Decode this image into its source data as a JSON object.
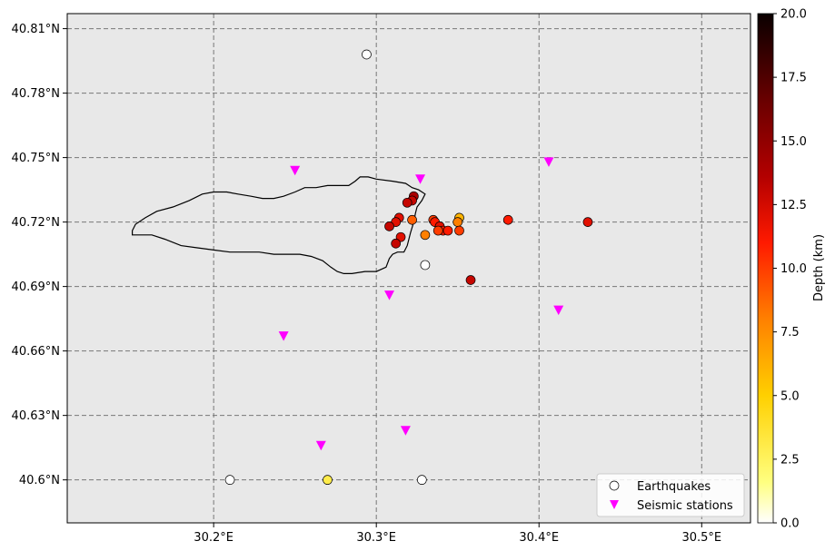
{
  "map": {
    "background_color": "#e8e8e8",
    "grid": true,
    "grid_style": "dashed",
    "lon_range": [
      30.11,
      30.53
    ],
    "lat_range": [
      40.58,
      40.817
    ],
    "lon_ticks": [
      {
        "value": 30.2,
        "label": "30.2°E"
      },
      {
        "value": 30.3,
        "label": "30.3°E"
      },
      {
        "value": 30.4,
        "label": "30.4°E"
      },
      {
        "value": 30.5,
        "label": "30.5°E"
      }
    ],
    "lat_ticks": [
      {
        "value": 40.6,
        "label": "40.6°N"
      },
      {
        "value": 40.63,
        "label": "40.63°N"
      },
      {
        "value": 40.66,
        "label": "40.66°N"
      },
      {
        "value": 40.69,
        "label": "40.69°N"
      },
      {
        "value": 40.72,
        "label": "40.72°N"
      },
      {
        "value": 40.75,
        "label": "40.75°N"
      },
      {
        "value": 40.78,
        "label": "40.78°N"
      },
      {
        "value": 40.81,
        "label": "40.81°N"
      }
    ],
    "lake_outline": [
      [
        30.15,
        40.716
      ],
      [
        30.152,
        40.719
      ],
      [
        30.158,
        40.722
      ],
      [
        30.165,
        40.725
      ],
      [
        30.175,
        40.727
      ],
      [
        30.185,
        40.73
      ],
      [
        30.193,
        40.733
      ],
      [
        30.2,
        40.734
      ],
      [
        30.208,
        40.734
      ],
      [
        30.215,
        40.733
      ],
      [
        30.223,
        40.732
      ],
      [
        30.23,
        40.731
      ],
      [
        30.237,
        40.731
      ],
      [
        30.243,
        40.732
      ],
      [
        30.25,
        40.734
      ],
      [
        30.256,
        40.736
      ],
      [
        30.263,
        40.736
      ],
      [
        30.27,
        40.737
      ],
      [
        30.277,
        40.737
      ],
      [
        30.283,
        40.737
      ],
      [
        30.287,
        40.739
      ],
      [
        30.29,
        40.741
      ],
      [
        30.295,
        40.741
      ],
      [
        30.3,
        40.74
      ],
      [
        30.31,
        40.739
      ],
      [
        30.318,
        40.738
      ],
      [
        30.322,
        40.736
      ],
      [
        30.326,
        40.735
      ],
      [
        30.33,
        40.733
      ],
      [
        30.328,
        40.73
      ],
      [
        30.325,
        40.727
      ],
      [
        30.324,
        40.724
      ],
      [
        30.323,
        40.72
      ],
      [
        30.321,
        40.715
      ],
      [
        30.319,
        40.709
      ],
      [
        30.317,
        40.706
      ],
      [
        30.313,
        40.706
      ],
      [
        30.31,
        40.705
      ],
      [
        30.308,
        40.703
      ],
      [
        30.306,
        40.699
      ],
      [
        30.3,
        40.697
      ],
      [
        30.293,
        40.697
      ],
      [
        30.285,
        40.696
      ],
      [
        30.28,
        40.696
      ],
      [
        30.276,
        40.697
      ],
      [
        30.272,
        40.699
      ],
      [
        30.267,
        40.702
      ],
      [
        30.26,
        40.704
      ],
      [
        30.253,
        40.705
      ],
      [
        30.245,
        40.705
      ],
      [
        30.237,
        40.705
      ],
      [
        30.228,
        40.706
      ],
      [
        30.22,
        40.706
      ],
      [
        30.21,
        40.706
      ],
      [
        30.2,
        40.707
      ],
      [
        30.19,
        40.708
      ],
      [
        30.18,
        40.709
      ],
      [
        30.17,
        40.712
      ],
      [
        30.162,
        40.714
      ],
      [
        30.155,
        40.714
      ],
      [
        30.15,
        40.714
      ]
    ],
    "earthquakes": [
      {
        "lon": 30.294,
        "lat": 40.798,
        "depth": null
      },
      {
        "lon": 30.33,
        "lat": 40.7,
        "depth": null
      },
      {
        "lon": 30.21,
        "lat": 40.6,
        "depth": null
      },
      {
        "lon": 30.328,
        "lat": 40.6,
        "depth": null
      },
      {
        "lon": 30.27,
        "lat": 40.6,
        "depth": 3
      },
      {
        "lon": 30.323,
        "lat": 40.732,
        "depth": 14
      },
      {
        "lon": 30.322,
        "lat": 40.73,
        "depth": 13
      },
      {
        "lon": 30.319,
        "lat": 40.729,
        "depth": 13
      },
      {
        "lon": 30.314,
        "lat": 40.722,
        "depth": 12
      },
      {
        "lon": 30.312,
        "lat": 40.72,
        "depth": 12
      },
      {
        "lon": 30.308,
        "lat": 40.718,
        "depth": 13
      },
      {
        "lon": 30.322,
        "lat": 40.721,
        "depth": 9
      },
      {
        "lon": 30.315,
        "lat": 40.713,
        "depth": 12
      },
      {
        "lon": 30.312,
        "lat": 40.71,
        "depth": 13
      },
      {
        "lon": 30.33,
        "lat": 40.714,
        "depth": 8
      },
      {
        "lon": 30.335,
        "lat": 40.721,
        "depth": 10
      },
      {
        "lon": 30.336,
        "lat": 40.72,
        "depth": 11
      },
      {
        "lon": 30.339,
        "lat": 40.718,
        "depth": 12
      },
      {
        "lon": 30.341,
        "lat": 40.716,
        "depth": 11
      },
      {
        "lon": 30.338,
        "lat": 40.716,
        "depth": 10
      },
      {
        "lon": 30.344,
        "lat": 40.716,
        "depth": 11
      },
      {
        "lon": 30.351,
        "lat": 40.722,
        "depth": 6
      },
      {
        "lon": 30.35,
        "lat": 40.72,
        "depth": 8
      },
      {
        "lon": 30.351,
        "lat": 40.716,
        "depth": 10
      },
      {
        "lon": 30.358,
        "lat": 40.693,
        "depth": 13
      },
      {
        "lon": 30.381,
        "lat": 40.721,
        "depth": 11
      },
      {
        "lon": 30.43,
        "lat": 40.72,
        "depth": 12
      }
    ],
    "stations": [
      {
        "lon": 30.25,
        "lat": 40.744
      },
      {
        "lon": 30.327,
        "lat": 40.74
      },
      {
        "lon": 30.406,
        "lat": 40.748
      },
      {
        "lon": 30.308,
        "lat": 40.686
      },
      {
        "lon": 30.412,
        "lat": 40.679
      },
      {
        "lon": 30.243,
        "lat": 40.667
      },
      {
        "lon": 30.318,
        "lat": 40.623
      },
      {
        "lon": 30.266,
        "lat": 40.616
      }
    ],
    "marker_colors": {
      "station": "#ff00ff",
      "outline": "#000000",
      "unknown_depth_fill": "#ffffff"
    }
  },
  "colorbar": {
    "label": "Depth (km)",
    "min": 0,
    "max": 20,
    "ticks": [
      "0.0",
      "2.5",
      "5.0",
      "7.5",
      "10.0",
      "12.5",
      "15.0",
      "17.5",
      "20.0"
    ],
    "colormap": "hot_r"
  },
  "legend": {
    "position": "lower-right",
    "earthquakes_label": "Earthquakes",
    "stations_label": "Seismic stations"
  }
}
